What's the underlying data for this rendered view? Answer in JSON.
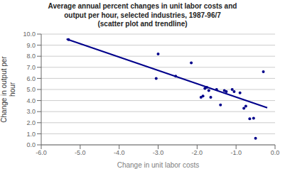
{
  "chart_data": {
    "type": "scatter",
    "title": "Average annual percent changes in unit labor costs and\noutput per hour, selected industries, 1987-96/7\n(scatter plot and trendline)",
    "xlabel": "Change in unit labor costs",
    "ylabel": "Change in output per\nhour",
    "xlim": [
      -6.0,
      0.0
    ],
    "ylim": [
      0.0,
      10.0
    ],
    "xticks": [
      {
        "value": -6.0,
        "label": "-6.0"
      },
      {
        "value": -5.0,
        "label": "-5.0"
      },
      {
        "value": -4.0,
        "label": "-4.0"
      },
      {
        "value": -3.0,
        "label": "-3.0"
      },
      {
        "value": -2.0,
        "label": "-2.0"
      },
      {
        "value": -1.0,
        "label": "-1.0"
      },
      {
        "value": 0.0,
        "label": "0.0"
      }
    ],
    "yticks": [
      {
        "value": 0.0,
        "label": "0.0"
      },
      {
        "value": 1.0,
        "label": "1.0"
      },
      {
        "value": 2.0,
        "label": "2.0"
      },
      {
        "value": 3.0,
        "label": "3.0"
      },
      {
        "value": 4.0,
        "label": "4.0"
      },
      {
        "value": 5.0,
        "label": "5.0"
      },
      {
        "value": 6.0,
        "label": "6.0"
      },
      {
        "value": 7.0,
        "label": "7.0"
      },
      {
        "value": 8.0,
        "label": "8.0"
      },
      {
        "value": 9.0,
        "label": "9.0"
      },
      {
        "value": 10.0,
        "label": "10.0"
      }
    ],
    "grid": "y",
    "series": [
      {
        "type": "scatter",
        "color": "#00008B",
        "x": [
          -5.3,
          -3.0,
          -3.05,
          -2.55,
          -2.15,
          -1.9,
          -1.85,
          -1.8,
          -1.75,
          -1.7,
          -1.65,
          -1.5,
          -1.4,
          -1.3,
          -1.25,
          -1.1,
          -1.05,
          -0.9,
          -0.8,
          -0.75,
          -0.65,
          -0.55,
          -0.5,
          -0.3
        ],
        "values": [
          9.5,
          8.2,
          6.0,
          6.2,
          7.4,
          4.3,
          4.4,
          5.1,
          5.2,
          4.9,
          4.3,
          5.0,
          3.6,
          4.9,
          4.8,
          5.0,
          4.8,
          4.7,
          3.3,
          3.5,
          2.35,
          2.4,
          0.6,
          6.6
        ]
      },
      {
        "type": "line",
        "color": "#00008B",
        "x": [
          -5.35,
          -0.2
        ],
        "values": [
          9.55,
          3.35
        ]
      }
    ]
  }
}
